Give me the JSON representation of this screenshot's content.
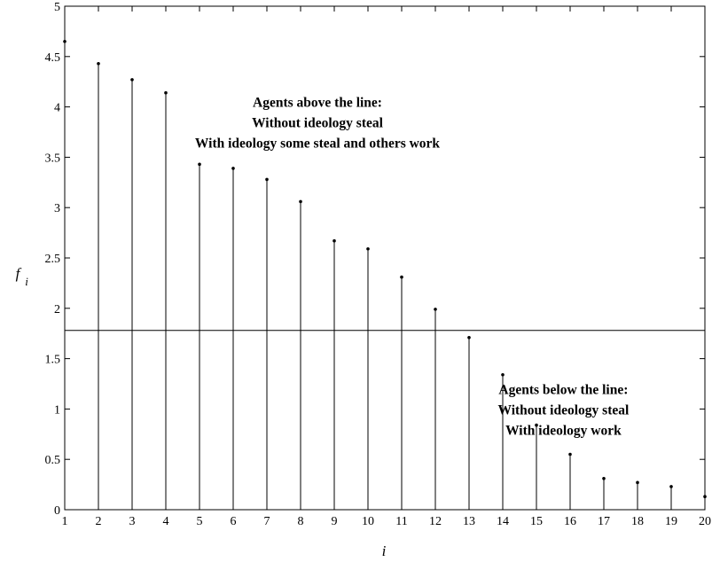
{
  "chart_data": {
    "type": "stem",
    "xlabel": "i",
    "ylabel": "f",
    "ylabel_subscript": "i",
    "xlim": [
      1,
      20
    ],
    "ylim": [
      0,
      5
    ],
    "xticks": [
      "1",
      "2",
      "3",
      "4",
      "5",
      "6",
      "7",
      "8",
      "9",
      "10",
      "11",
      "12",
      "13",
      "14",
      "15",
      "16",
      "17",
      "18",
      "19",
      "20"
    ],
    "yticks": [
      "0",
      "0.5",
      "1",
      "1.5",
      "2",
      "2.5",
      "3",
      "3.5",
      "4",
      "4.5",
      "5"
    ],
    "grid": false,
    "x": [
      1,
      2,
      3,
      4,
      5,
      6,
      7,
      8,
      9,
      10,
      11,
      12,
      13,
      14,
      15,
      16,
      17,
      18,
      19,
      20
    ],
    "values": [
      4.65,
      4.43,
      4.27,
      4.14,
      3.43,
      3.39,
      3.28,
      3.06,
      2.67,
      2.59,
      2.31,
      1.99,
      1.71,
      1.34,
      0.84,
      0.55,
      0.31,
      0.27,
      0.23,
      0.13
    ],
    "threshold": 1.78,
    "annotations": [
      {
        "lines": [
          "Agents above the line:",
          "Without ideology steal",
          "With ideology some steal and others work"
        ],
        "x": 8.5,
        "y": 4.0
      },
      {
        "lines": [
          "Agents below the line:",
          "Without ideology steal",
          "With ideology work"
        ],
        "x": 15.8,
        "y": 1.15
      }
    ]
  }
}
